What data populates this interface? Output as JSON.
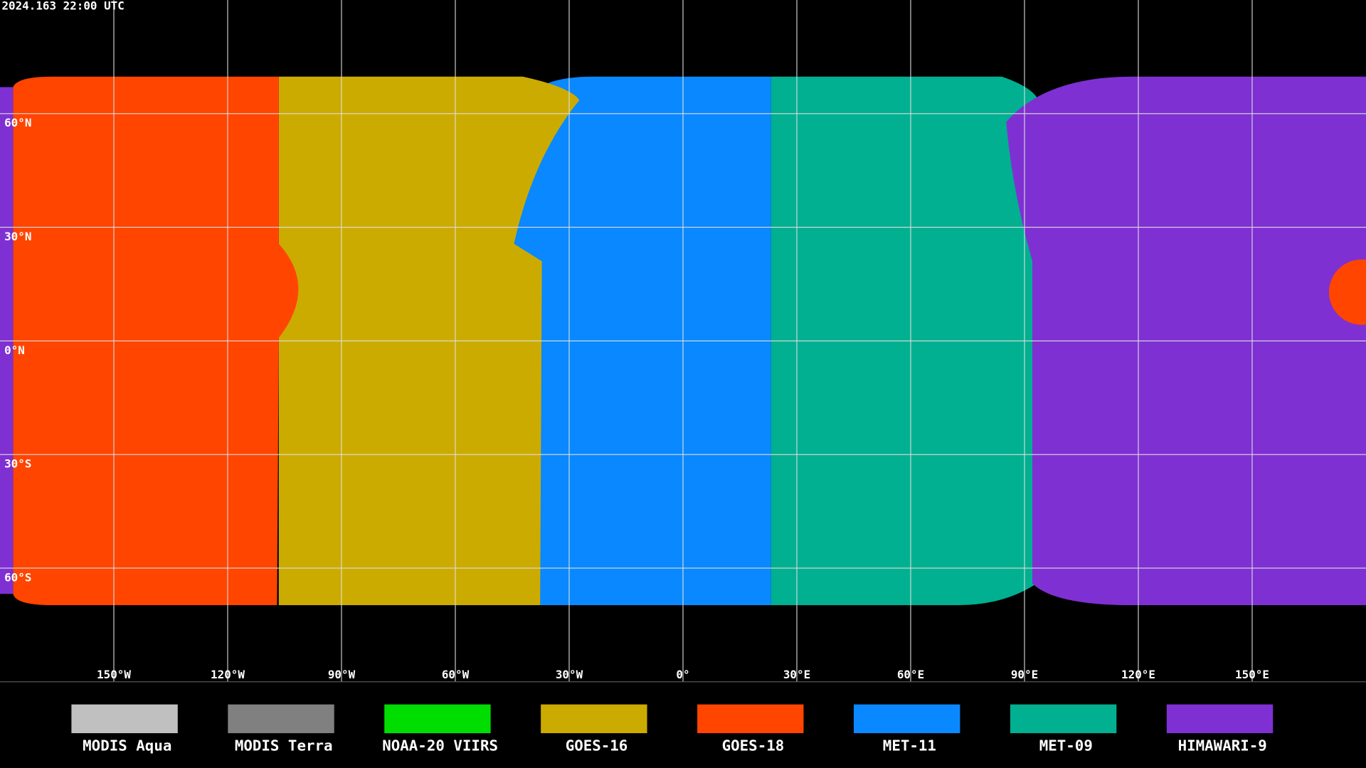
{
  "header": {
    "timestamp": "2024.163 22:00 UTC"
  },
  "map": {
    "lonlim": [
      -180,
      180
    ],
    "latlim": [
      -90,
      90
    ],
    "lon_ticks": [
      {
        "value": -150,
        "label": "150°W"
      },
      {
        "value": -120,
        "label": "120°W"
      },
      {
        "value": -90,
        "label": "90°W"
      },
      {
        "value": -60,
        "label": "60°W"
      },
      {
        "value": -30,
        "label": "30°W"
      },
      {
        "value": 0,
        "label": "0°"
      },
      {
        "value": 30,
        "label": "30°E"
      },
      {
        "value": 60,
        "label": "60°E"
      },
      {
        "value": 90,
        "label": "90°E"
      },
      {
        "value": 120,
        "label": "120°E"
      },
      {
        "value": 150,
        "label": "150°E"
      }
    ],
    "lat_ticks": [
      {
        "value": 60,
        "label": "60°N"
      },
      {
        "value": 30,
        "label": "30°N"
      },
      {
        "value": 0,
        "label": "0°N"
      },
      {
        "value": -30,
        "label": "30°S"
      },
      {
        "value": -60,
        "label": "60°S"
      }
    ]
  },
  "legend": {
    "items": [
      {
        "label": "MODIS Aqua",
        "color": "#c0c0c0"
      },
      {
        "label": "MODIS Terra",
        "color": "#808080"
      },
      {
        "label": "NOAA-20 VIIRS",
        "color": "#00dd00"
      },
      {
        "label": "GOES-16",
        "color": "#ccab00"
      },
      {
        "label": "GOES-18",
        "color": "#ff4500"
      },
      {
        "label": "MET-11",
        "color": "#0a88ff"
      },
      {
        "label": "MET-09",
        "color": "#00b090"
      },
      {
        "label": "HIMAWARI-9",
        "color": "#7f30d3"
      }
    ]
  }
}
